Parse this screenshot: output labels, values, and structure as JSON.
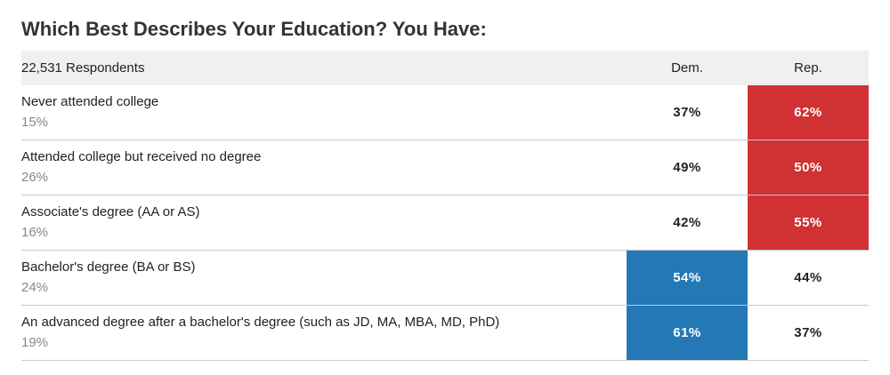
{
  "chart_data": {
    "type": "table",
    "title": "Which Best Describes Your Education? You Have:",
    "respondents_label": "22,531 Respondents",
    "columns": [
      "Dem.",
      "Rep."
    ],
    "colors": {
      "dem": "#2378b5",
      "rep": "#d03133"
    },
    "rows": [
      {
        "label": "Never attended college",
        "share": "15%",
        "dem": "37%",
        "rep": "62%",
        "winner": "rep"
      },
      {
        "label": "Attended college but received no degree",
        "share": "26%",
        "dem": "49%",
        "rep": "50%",
        "winner": "rep"
      },
      {
        "label": "Associate's degree (AA or AS)",
        "share": "16%",
        "dem": "42%",
        "rep": "55%",
        "winner": "rep"
      },
      {
        "label": "Bachelor's degree (BA or BS)",
        "share": "24%",
        "dem": "54%",
        "rep": "44%",
        "winner": "dem"
      },
      {
        "label": "An advanced degree after a bachelor's degree (such as JD, MA, MBA, MD, PhD)",
        "share": "19%",
        "dem": "61%",
        "rep": "37%",
        "winner": "dem"
      }
    ]
  }
}
